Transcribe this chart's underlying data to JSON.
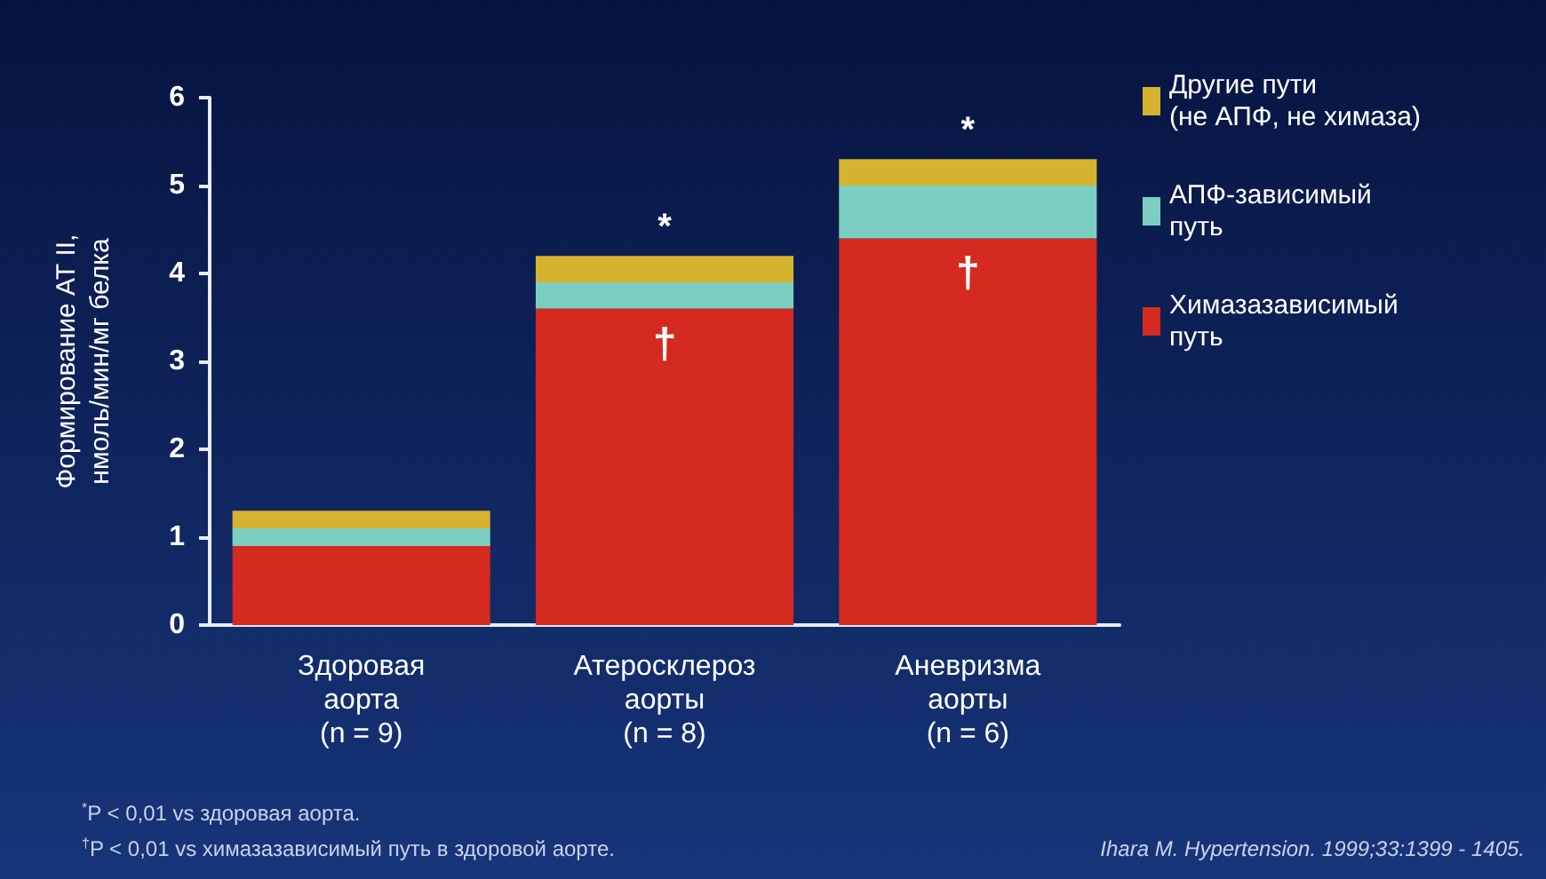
{
  "chart_data": {
    "type": "bar",
    "stacked": true,
    "ylabel": "Формирование АТ II,\nнмоль/мин/мг белка",
    "categories": [
      "Здоровая\nаорта\n(n = 9)",
      "Атеросклероз\nаорты\n(n = 8)",
      "Аневризма\nаорты\n(n = 6)"
    ],
    "series": [
      {
        "name": "Химазазависимый\nпуть",
        "color": "#d42a1f",
        "values": [
          0.9,
          3.6,
          4.4
        ]
      },
      {
        "name": "АПФ-зависимый\nпуть",
        "color": "#7ccfc0",
        "values": [
          0.2,
          0.3,
          0.6
        ]
      },
      {
        "name": "Другие пути\n(не АПФ, не химаза)",
        "color": "#d6b32e",
        "values": [
          0.2,
          0.3,
          0.3
        ]
      }
    ],
    "ylim": [
      0,
      6
    ],
    "yticks": [
      0,
      1,
      2,
      3,
      4,
      5,
      6
    ],
    "legend": "right",
    "annotations": [
      {
        "text": "*",
        "x": "Атеросклероз\nаорты\n(n = 8)",
        "y": 4.2
      },
      {
        "text": "*",
        "x": "Аневризма\nаорты\n(n = 6)",
        "y": 5.3
      },
      {
        "text": "†",
        "x": "Атеросклероз\nаорты\n(n = 8)",
        "y": 3.6
      },
      {
        "text": "†",
        "x": "Аневризма\nаорты\n(n = 6)",
        "y": 4.4
      },
      "$^{*}$P < 0,01 vs здоровая аорта.",
      "$^{†}$P < 0,01 vs химазазависимый путь в здоровой аорте.",
      "Ihara M. Hypertension. 1999;33:1399 - 1405."
    ]
  }
}
